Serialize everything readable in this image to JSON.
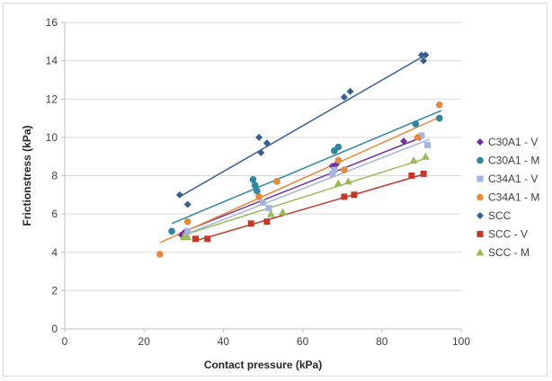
{
  "chart_data": {
    "type": "scatter",
    "xlabel": "Contact pressure (kPa)",
    "ylabel": "Frictionstress (kPa)",
    "xlim": [
      0,
      100
    ],
    "ylim": [
      0,
      16
    ],
    "xticks": [
      0,
      20,
      40,
      60,
      80,
      100
    ],
    "yticks": [
      0,
      2,
      4,
      6,
      8,
      10,
      12,
      14,
      16
    ],
    "grid": "horizontal",
    "legend": "right",
    "series": [
      {
        "name": "C30A1 - V",
        "marker": "diamond",
        "color": "#7030a0",
        "points": [
          [
            29.5,
            4.9
          ],
          [
            30.5,
            5.1
          ],
          [
            49,
            6.9
          ],
          [
            67.5,
            8.5
          ],
          [
            68.5,
            8.6
          ],
          [
            85.5,
            9.8
          ],
          [
            89.5,
            10.0
          ]
        ],
        "trendline": [
          [
            29,
            5.0
          ],
          [
            90,
            10.0
          ]
        ]
      },
      {
        "name": "C30A1 - M",
        "marker": "circle",
        "color": "#31859c",
        "points": [
          [
            27,
            5.1
          ],
          [
            47.5,
            7.8
          ],
          [
            48,
            7.5
          ],
          [
            48.5,
            7.2
          ],
          [
            68,
            9.3
          ],
          [
            69,
            9.5
          ],
          [
            88.5,
            10.7
          ],
          [
            94.5,
            11.0
          ]
        ],
        "trendline": [
          [
            27,
            5.5
          ],
          [
            95,
            11.4
          ]
        ]
      },
      {
        "name": "C34A1 - V",
        "marker": "square",
        "color": "#a6b5e0",
        "points": [
          [
            30.5,
            4.8
          ],
          [
            31,
            5.1
          ],
          [
            50,
            6.6
          ],
          [
            51.5,
            6.3
          ],
          [
            67.5,
            8.1
          ],
          [
            68,
            8.3
          ],
          [
            90,
            10.1
          ],
          [
            91.5,
            9.6
          ]
        ],
        "trendline": [
          [
            30,
            4.9
          ],
          [
            92,
            9.9
          ]
        ]
      },
      {
        "name": "C34A1 - M",
        "marker": "circle",
        "color": "#e68a3c",
        "points": [
          [
            24,
            3.9
          ],
          [
            31,
            5.6
          ],
          [
            49,
            6.9
          ],
          [
            53.5,
            7.7
          ],
          [
            69,
            8.8
          ],
          [
            70.5,
            8.3
          ],
          [
            89,
            10.0
          ],
          [
            94.5,
            11.7
          ]
        ],
        "trendline": [
          [
            24,
            4.5
          ],
          [
            95,
            11.1
          ]
        ]
      },
      {
        "name": "SCC",
        "marker": "diamond",
        "color": "#376092",
        "points": [
          [
            29,
            7.0
          ],
          [
            31,
            6.5
          ],
          [
            49,
            10.0
          ],
          [
            49.5,
            9.2
          ],
          [
            51,
            9.7
          ],
          [
            70.5,
            12.1
          ],
          [
            72,
            12.4
          ],
          [
            90,
            14.3
          ],
          [
            90.5,
            14.0
          ],
          [
            91,
            14.3
          ]
        ],
        "trendline": [
          [
            29,
            6.9
          ],
          [
            91,
            14.3
          ]
        ]
      },
      {
        "name": "SCC - V",
        "marker": "square",
        "color": "#c0392b",
        "points": [
          [
            33,
            4.7
          ],
          [
            36,
            4.7
          ],
          [
            47,
            5.5
          ],
          [
            51,
            5.6
          ],
          [
            70.5,
            6.9
          ],
          [
            73,
            7.0
          ],
          [
            87.5,
            8.0
          ],
          [
            90.5,
            8.1
          ]
        ],
        "trendline": [
          [
            33,
            4.6
          ],
          [
            91,
            8.1
          ]
        ]
      },
      {
        "name": "SCC - M",
        "marker": "triangle",
        "color": "#9bbb59",
        "points": [
          [
            30,
            4.8
          ],
          [
            31,
            4.8
          ],
          [
            52,
            6.0
          ],
          [
            55,
            6.1
          ],
          [
            69,
            7.6
          ],
          [
            71.5,
            7.7
          ],
          [
            88,
            8.8
          ],
          [
            91,
            9.0
          ]
        ],
        "trendline": [
          [
            30,
            4.9
          ],
          [
            91,
            8.9
          ]
        ]
      }
    ]
  }
}
